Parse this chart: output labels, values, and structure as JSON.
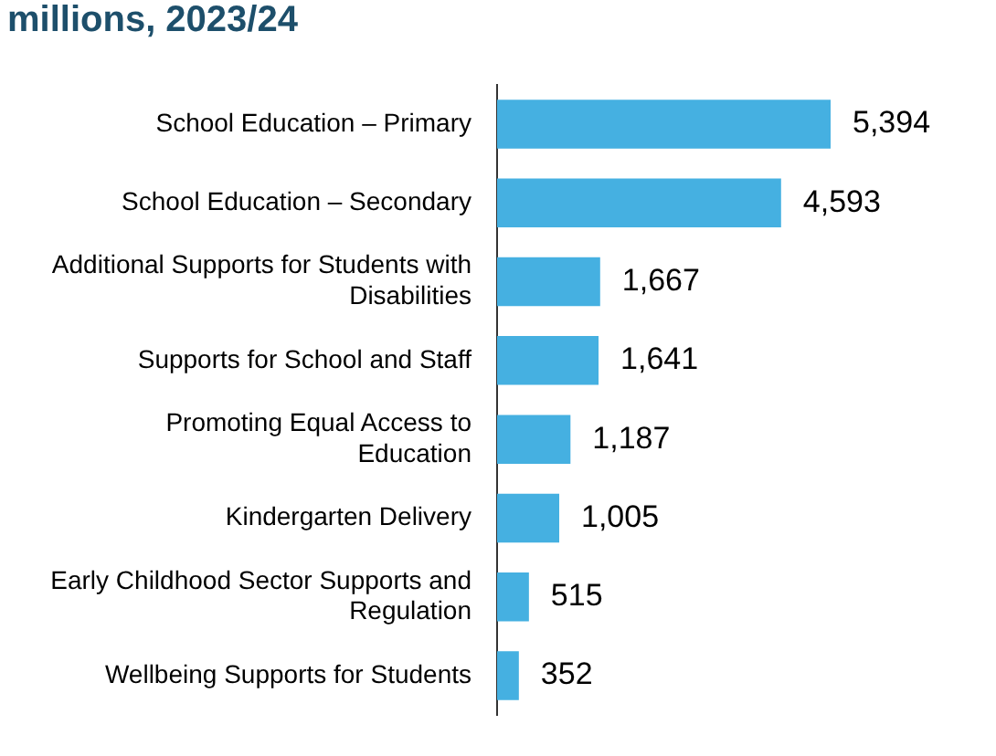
{
  "chart_data": {
    "type": "bar",
    "orientation": "horizontal",
    "title": "millions, 2023/24",
    "categories": [
      "School Education – Primary",
      "School Education – Secondary",
      "Additional Supports for Students with Disabilities",
      "Supports for School and Staff",
      "Promoting Equal Access to Education",
      "Kindergarten Delivery",
      "Early Childhood Sector Supports and Regulation",
      "Wellbeing Supports for Students"
    ],
    "values": [
      5394,
      4593,
      1667,
      1641,
      1187,
      1005,
      515,
      352
    ],
    "value_labels": [
      "5,394",
      "4,593",
      "1,667",
      "1,641",
      "1,187",
      "1,005",
      "515",
      "352"
    ],
    "color": "#45b0e1",
    "grid": false,
    "legend": false
  }
}
